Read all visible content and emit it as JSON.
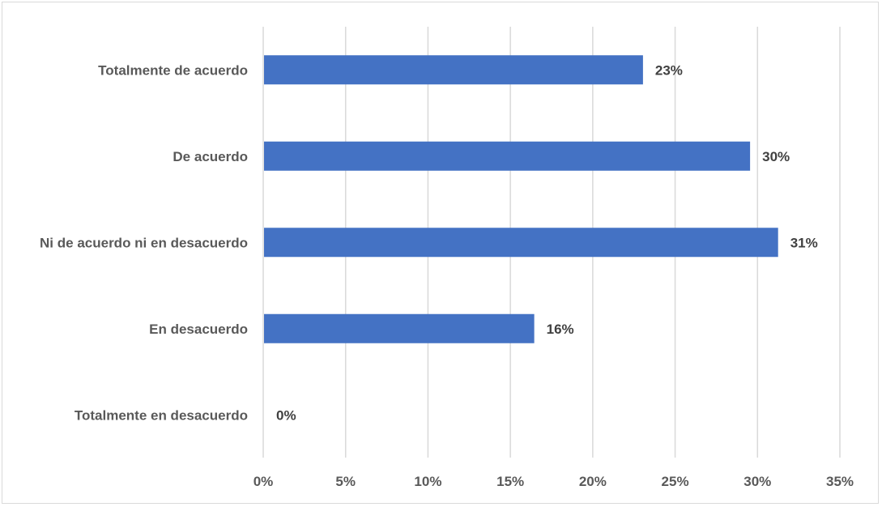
{
  "chart_data": {
    "type": "bar",
    "orientation": "horizontal",
    "categories": [
      "Totalmente de acuerdo",
      "De acuerdo",
      "Ni de acuerdo ni en desacuerdo",
      "En desacuerdo",
      "Totalmente en desacuerdo"
    ],
    "values": [
      0.23,
      0.295,
      0.312,
      0.164,
      0.0
    ],
    "data_labels": [
      "23%",
      "30%",
      "31%",
      "16%",
      "0%"
    ],
    "xlim": [
      0,
      0.35
    ],
    "x_ticks": [
      0,
      0.05,
      0.1,
      0.15,
      0.2,
      0.25,
      0.3,
      0.35
    ],
    "x_tick_labels": [
      "0%",
      "5%",
      "10%",
      "15%",
      "20%",
      "25%",
      "30%",
      "35%"
    ],
    "title": "",
    "xlabel": "",
    "ylabel": "",
    "grid": "vertical",
    "legend": "none",
    "bar_color": "#4472c4"
  }
}
